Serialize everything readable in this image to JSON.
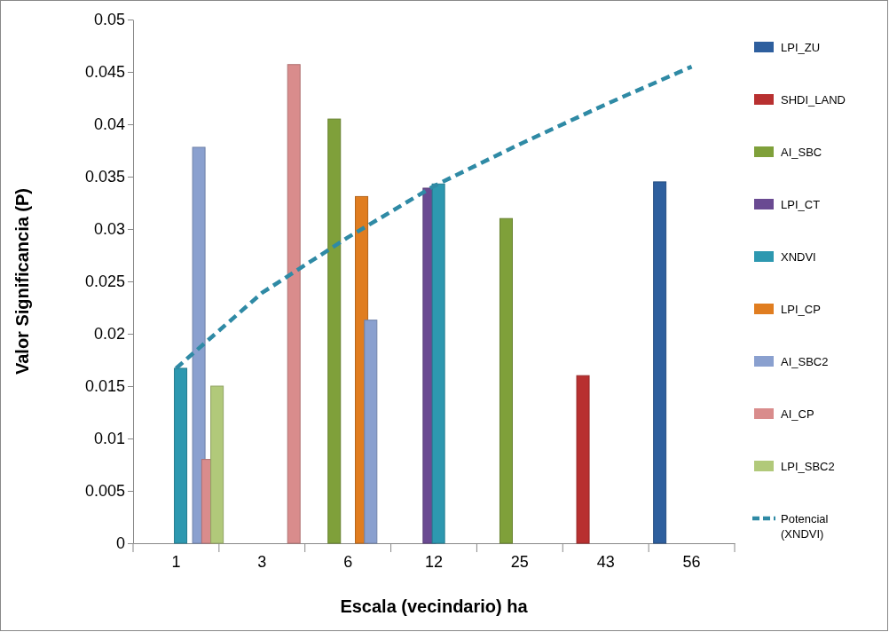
{
  "chart_data": {
    "type": "bar",
    "xlabel": "Escala (vecindario) ha",
    "ylabel": "Valor Significancia (P)",
    "categories": [
      "1",
      "3",
      "6",
      "12",
      "25",
      "43",
      "56"
    ],
    "ylim": [
      0,
      0.05
    ],
    "yticks": [
      0,
      0.005,
      0.01,
      0.015,
      0.02,
      0.025,
      0.03,
      0.035,
      0.04,
      0.045,
      0.05
    ],
    "grid": false,
    "legend": "right",
    "series": [
      {
        "name": "LPI_ZU",
        "color": "#2e5f9e",
        "values": [
          null,
          null,
          null,
          null,
          null,
          null,
          0.0345
        ]
      },
      {
        "name": "SHDI_LAND",
        "color": "#b83030",
        "values": [
          null,
          null,
          null,
          null,
          null,
          0.016,
          null
        ]
      },
      {
        "name": "AI_SBC",
        "color": "#7fa03a",
        "values": [
          null,
          null,
          0.0405,
          null,
          0.031,
          null,
          null
        ]
      },
      {
        "name": "LPI_CT",
        "color": "#6a4a92",
        "values": [
          null,
          null,
          null,
          0.0339,
          null,
          null,
          null
        ]
      },
      {
        "name": "XNDVI",
        "color": "#2d98b0",
        "values": [
          0.0167,
          null,
          null,
          0.0343,
          null,
          null,
          null
        ]
      },
      {
        "name": "LPI_CP",
        "color": "#e07d20",
        "values": [
          null,
          null,
          0.0331,
          null,
          null,
          null,
          null
        ]
      },
      {
        "name": "AI_SBC2",
        "color": "#8aa0cf",
        "values": [
          0.0378,
          null,
          0.0213,
          null,
          null,
          null,
          null
        ]
      },
      {
        "name": "AI_CP",
        "color": "#d98c8c",
        "values": [
          0.008,
          0.0457,
          null,
          null,
          null,
          null,
          null
        ]
      },
      {
        "name": "LPI_SBC2",
        "color": "#b1c97a",
        "values": [
          0.015,
          null,
          null,
          null,
          null,
          null,
          null
        ]
      },
      {
        "name": "Potencial (XNDVI)",
        "type": "line",
        "line_style": "dashed",
        "color": "#2f8aa5",
        "values": [
          0.0167,
          0.0239,
          0.0292,
          0.0341,
          0.0381,
          0.0419,
          0.0455
        ]
      }
    ]
  }
}
